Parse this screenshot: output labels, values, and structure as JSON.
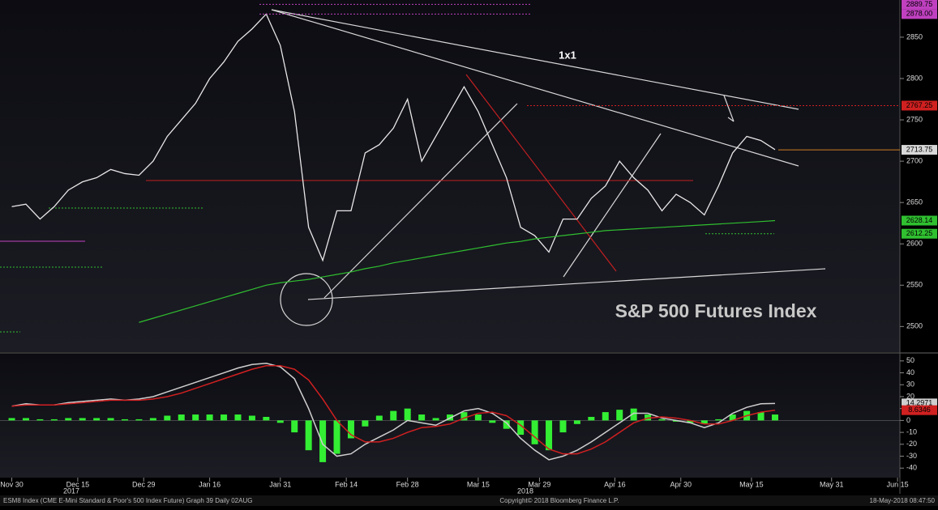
{
  "chart_data": [
    {
      "type": "line",
      "title": "S&P 500 Futures Index",
      "annotations": [
        "1x1"
      ],
      "x": [
        0,
        3,
        6,
        9,
        12,
        15,
        18,
        21,
        24,
        27,
        30,
        33,
        36,
        39,
        42,
        45,
        48,
        51,
        54,
        57,
        60,
        63,
        66,
        69,
        72,
        75,
        78,
        81,
        84,
        87,
        90,
        93,
        96,
        99,
        102,
        105,
        108,
        111,
        114,
        117,
        120,
        123,
        126,
        129,
        132,
        135,
        138,
        141,
        144,
        147,
        150,
        153,
        156,
        159,
        162
      ],
      "xlim": [
        -2.5,
        188.5
      ],
      "xticks": [
        {
          "value": 0,
          "label": "Nov 30"
        },
        {
          "value": 14,
          "label": "Dec 15"
        },
        {
          "value": 28,
          "label": "Dec 29"
        },
        {
          "value": 42,
          "label": "Jan 16"
        },
        {
          "value": 57,
          "label": "Jan 31"
        },
        {
          "value": 71,
          "label": "Feb 14"
        },
        {
          "value": 84,
          "label": "Feb 28"
        },
        {
          "value": 99,
          "label": "Mar 15"
        },
        {
          "value": 112,
          "label": "Mar 29"
        },
        {
          "value": 128,
          "label": "Apr 16"
        },
        {
          "value": 142,
          "label": "Apr 30"
        },
        {
          "value": 157,
          "label": "May 15"
        },
        {
          "value": 174,
          "label": "May 31"
        },
        {
          "value": 188,
          "label": "Jun 15"
        }
      ],
      "year_labels": [
        "2017",
        "2018"
      ],
      "ylim": [
        2469,
        2895
      ],
      "yticks": [
        2500,
        2550,
        2600,
        2650,
        2700,
        2750,
        2800,
        2850
      ],
      "series": [
        {
          "color": "#e8e8e8",
          "values": [
            2645,
            2648,
            2630,
            2645,
            2665,
            2675,
            2680,
            2690,
            2685,
            2683,
            2700,
            2730,
            2750,
            2770,
            2800,
            2820,
            2845,
            2860,
            2878,
            2840,
            2760,
            2620,
            2580,
            2640,
            2640,
            2710,
            2720,
            2740,
            2775,
            2700,
            2730,
            2760,
            2790,
            2760,
            2720,
            2680,
            2620,
            2610,
            2590,
            2630,
            2630,
            2655,
            2670,
            2700,
            2680,
            2665,
            2640,
            2660,
            2650,
            2635,
            2670,
            2710,
            2730,
            2725,
            2714
          ]
        },
        {
          "color": "#2fbf2f",
          "values": [
            null,
            null,
            null,
            null,
            null,
            null,
            null,
            null,
            null,
            2505,
            2510,
            2515,
            2520,
            2525,
            2530,
            2535,
            2540,
            2545,
            2550,
            2553,
            2555,
            2557,
            2560,
            2563,
            2566,
            2570,
            2573,
            2577,
            2580,
            2583,
            2586,
            2589,
            2592,
            2595,
            2598,
            2601,
            2603,
            2606,
            2608,
            2610,
            2612,
            2614,
            2616,
            2617,
            2618,
            2619,
            2620,
            2621,
            2622,
            2623,
            2624,
            2625,
            2626,
            2627,
            2628.14
          ]
        }
      ],
      "price_labels": [
        {
          "value": 2889.75,
          "color": "#c040c0"
        },
        {
          "value": 2878,
          "label": "2878.00",
          "color": "#c040c0"
        },
        {
          "value": 2767.25,
          "color": "#d02020"
        },
        {
          "value": 2713.75,
          "color": "#d8d8d8"
        },
        {
          "value": 2628.14,
          "color": "#30c030"
        },
        {
          "value": 2612.25,
          "color": "#30c030"
        }
      ]
    },
    {
      "type": "macd",
      "ylim": [
        -48,
        56
      ],
      "yticks": [
        -40,
        -30,
        -20,
        -10,
        0,
        10,
        20,
        30,
        40,
        50
      ],
      "histogram": {
        "color": "#33ee33",
        "values": [
          2,
          2,
          1,
          1,
          2,
          2,
          2,
          2,
          1,
          1,
          2,
          4,
          5,
          5,
          5,
          5,
          5,
          4,
          3,
          -2,
          -10,
          -25,
          -35,
          -28,
          -15,
          -5,
          4,
          8,
          10,
          5,
          2,
          5,
          7,
          5,
          -2,
          -7,
          -12,
          -20,
          -25,
          -10,
          -3,
          3,
          7,
          9,
          10,
          5,
          1,
          -1,
          -2,
          -3,
          1,
          5,
          8,
          7,
          5
        ]
      },
      "series": [
        {
          "color": "#cfcfcf",
          "values": [
            12,
            14,
            13,
            13,
            15,
            16,
            17,
            18,
            17,
            18,
            20,
            24,
            28,
            32,
            36,
            40,
            44,
            47,
            48,
            45,
            35,
            10,
            -20,
            -30,
            -28,
            -20,
            -14,
            -8,
            0,
            -2,
            -4,
            2,
            8,
            10,
            6,
            -2,
            -15,
            -25,
            -33,
            -30,
            -25,
            -18,
            -10,
            -2,
            6,
            6,
            2,
            0,
            -2,
            -6,
            -2,
            6,
            11,
            14,
            14.2971
          ]
        },
        {
          "color": "#d02020",
          "values": [
            12,
            13,
            13,
            13,
            14,
            15,
            16,
            17,
            17,
            17,
            18,
            20,
            23,
            27,
            31,
            35,
            39,
            43,
            46,
            46,
            43,
            34,
            18,
            0,
            -12,
            -18,
            -18,
            -15,
            -10,
            -6,
            -5,
            -3,
            2,
            6,
            7,
            4,
            -4,
            -14,
            -24,
            -28,
            -28,
            -24,
            -18,
            -10,
            -2,
            2,
            3,
            2,
            0,
            -3,
            -3,
            0,
            4,
            7,
            8.6346
          ]
        }
      ]
    }
  ],
  "footer": {
    "left": "ESM8 Index (CME E-Mini Standard & Poor's 500 Index Future) Graph 39  Daily 02AUG",
    "center": "Copyright© 2018 Bloomberg Finance L.P.",
    "right": "18-May-2018 08:47:50"
  }
}
